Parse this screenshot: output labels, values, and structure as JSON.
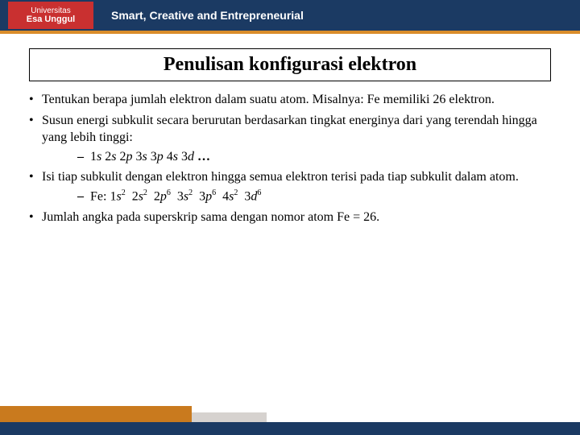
{
  "header": {
    "logo_line1": "Universitas",
    "logo_line2": "Esa Unggul",
    "tagline": "Smart, Creative and Entrepreneurial"
  },
  "title": "Penulisan konfigurasi elektron",
  "bullets": {
    "b1": "Tentukan berapa jumlah elektron dalam suatu atom. Misalnya: Fe memiliki 26 elektron.",
    "b2": "Susun energi subkulit secara berurutan berdasarkan tingkat energinya dari yang terendah hingga yang lebih tinggi:",
    "b2_sub_parts": {
      "s1": "1",
      "l1": "s",
      "sp1": "  2",
      "l2": "s",
      "sp2": "  2",
      "l3": "p",
      "sp3": "  3",
      "l4": "s",
      "sp4": "  3",
      "l5": "p",
      "sp5": "  4",
      "l6": "s",
      "sp6": "  3",
      "l7": "d",
      "dots": " …"
    },
    "b3": "Isi tiap subkulit dengan elektron hingga semua elektron terisi pada tiap subkulit dalam atom.",
    "b3_sub_label": "Fe: ",
    "b3_config": {
      "c1n": "1",
      "c1l": "s",
      "c1e": "2",
      "c2n": "2",
      "c2l": "s",
      "c2e": "2",
      "c3n": "2",
      "c3l": "p",
      "c3e": "6",
      "c4n": "3",
      "c4l": "s",
      "c4e": "2",
      "c5n": "3",
      "c5l": "p",
      "c5e": "6",
      "c6n": "4",
      "c6l": "s",
      "c6e": "2",
      "c7n": "3",
      "c7l": "d",
      "c7e": "6",
      "dummy": " "
    },
    "b4": "Jumlah angka pada superskrip sama dengan nomor atom Fe = 26."
  },
  "colors": {
    "header_bg": "#1b3a63",
    "accent_orange": "#d98c2a",
    "logo_bg": "#c93030",
    "footer_orange": "#c97a1e",
    "footer_grey": "#d6d2cf"
  }
}
